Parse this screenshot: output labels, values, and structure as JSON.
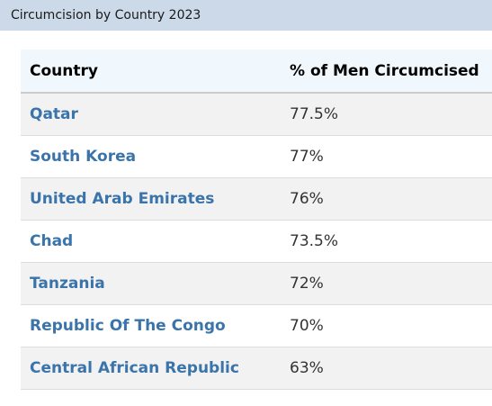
{
  "header": {
    "title": "Circumcision by Country 2023"
  },
  "table": {
    "columns": [
      "Country",
      "% of Men Circumcised"
    ],
    "rows": [
      {
        "country": "Qatar",
        "percent": "77.5%"
      },
      {
        "country": "South Korea",
        "percent": "77%"
      },
      {
        "country": "United Arab Emirates",
        "percent": "76%"
      },
      {
        "country": "Chad",
        "percent": "73.5%"
      },
      {
        "country": "Tanzania",
        "percent": "72%"
      },
      {
        "country": "Republic Of The Congo",
        "percent": "70%"
      },
      {
        "country": "Central African Republic",
        "percent": "63%"
      }
    ]
  },
  "colors": {
    "title_bar_bg": "#ccd9e8",
    "header_row_bg": "#f0f7fd",
    "link_color": "#3a74aa",
    "zebra_row_bg": "#f2f2f2"
  }
}
